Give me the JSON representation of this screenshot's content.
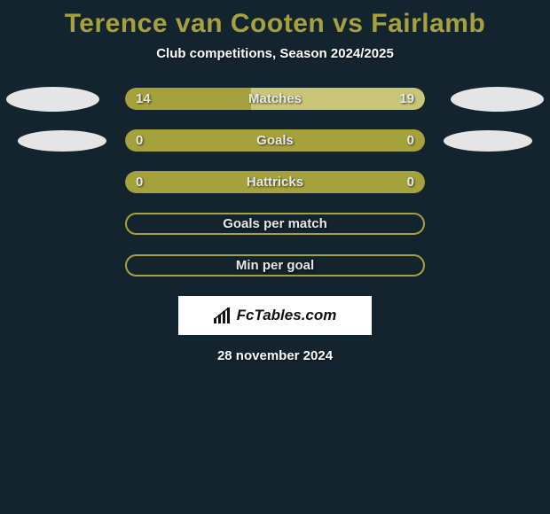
{
  "title": "Terence van Cooten vs Fairlamb",
  "subtitle": "Club competitions, Season 2024/2025",
  "date": "28 november 2024",
  "logo_text": "FcTables.com",
  "colors": {
    "background": "#13242f",
    "accent": "#a5a23e",
    "light_accent": "#c9c678",
    "oval": "#e5e5e5",
    "text_white": "#ffffff",
    "text_light": "#e8e8e8"
  },
  "rows": [
    {
      "label": "Matches",
      "left_val": "14",
      "right_val": "19",
      "left_pct": 42,
      "right_pct": 58,
      "left_color": "#a5a23e",
      "right_color": "#c9c678",
      "has_ovals": true,
      "oval_size": "big",
      "style": "filled"
    },
    {
      "label": "Goals",
      "left_val": "0",
      "right_val": "0",
      "left_pct": 100,
      "right_pct": 0,
      "left_color": "#a5a23e",
      "right_color": "#a5a23e",
      "has_ovals": true,
      "oval_size": "small",
      "style": "filled"
    },
    {
      "label": "Hattricks",
      "left_val": "0",
      "right_val": "0",
      "left_pct": 100,
      "right_pct": 0,
      "left_color": "#a5a23e",
      "right_color": "#a5a23e",
      "has_ovals": false,
      "style": "filled"
    },
    {
      "label": "Goals per match",
      "left_val": "",
      "right_val": "",
      "has_ovals": false,
      "style": "outline"
    },
    {
      "label": "Min per goal",
      "left_val": "",
      "right_val": "",
      "has_ovals": false,
      "style": "outline"
    }
  ]
}
